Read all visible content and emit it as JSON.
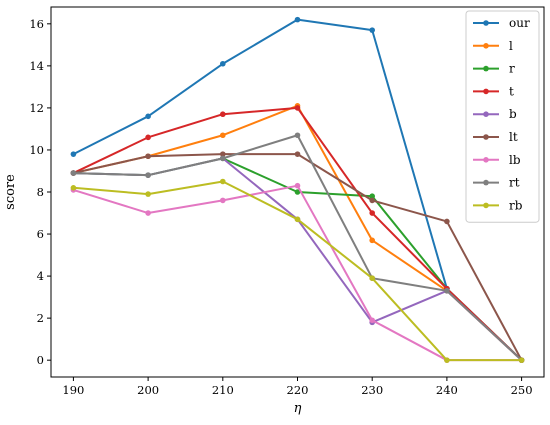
{
  "chart_data": {
    "type": "line",
    "title": "",
    "xlabel": "η",
    "ylabel": "score",
    "x": [
      190,
      200,
      210,
      220,
      230,
      240,
      250
    ],
    "xlim": [
      187,
      253
    ],
    "ylim": [
      -0.8,
      16.8
    ],
    "xticks": [
      190,
      200,
      210,
      220,
      230,
      240,
      250
    ],
    "yticks": [
      0,
      2,
      4,
      6,
      8,
      10,
      12,
      14,
      16
    ],
    "grid": false,
    "legend_position": "top-right",
    "series": [
      {
        "name": "our",
        "color": "#1f77b4",
        "values": [
          9.8,
          11.6,
          14.1,
          16.2,
          15.7,
          3.4,
          0.0
        ]
      },
      {
        "name": "l",
        "color": "#ff7f0e",
        "values": [
          8.9,
          9.7,
          10.7,
          12.1,
          5.7,
          3.3,
          0.0
        ]
      },
      {
        "name": "r",
        "color": "#2ca02c",
        "values": [
          8.9,
          8.8,
          9.6,
          8.0,
          7.8,
          3.4,
          0.0
        ]
      },
      {
        "name": "t",
        "color": "#d62728",
        "values": [
          8.9,
          10.6,
          11.7,
          12.0,
          7.0,
          3.4,
          0.0
        ]
      },
      {
        "name": "b",
        "color": "#9467bd",
        "values": [
          8.9,
          8.8,
          9.6,
          6.7,
          1.8,
          3.3,
          0.0
        ]
      },
      {
        "name": "lt",
        "color": "#8c564b",
        "values": [
          8.9,
          9.7,
          9.8,
          9.8,
          7.6,
          6.6,
          0.0
        ]
      },
      {
        "name": "lb",
        "color": "#e377c2",
        "values": [
          8.1,
          7.0,
          7.6,
          8.3,
          1.9,
          0.0,
          0.0
        ]
      },
      {
        "name": "rt",
        "color": "#7f7f7f",
        "values": [
          8.9,
          8.8,
          9.6,
          10.7,
          3.9,
          3.3,
          0.0
        ]
      },
      {
        "name": "rb",
        "color": "#bcbd22",
        "values": [
          8.2,
          7.9,
          8.5,
          6.7,
          3.9,
          0.0,
          0.0
        ]
      }
    ]
  }
}
